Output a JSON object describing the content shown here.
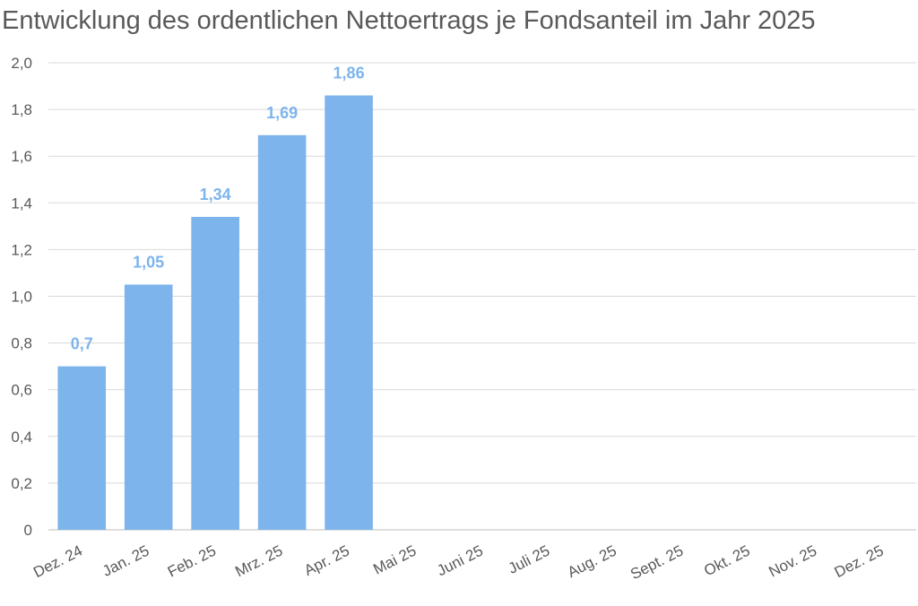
{
  "chart_data": {
    "type": "bar",
    "title": "Entwicklung des ordentlichen Nettoertrags je Fondsanteil im Jahr 2025",
    "xlabel": "",
    "ylabel": "",
    "categories": [
      "Dez. 24",
      "Jan. 25",
      "Feb. 25",
      "Mrz. 25",
      "Apr. 25",
      "Mai 25",
      "Juni 25",
      "Juli 25",
      "Aug. 25",
      "Sept. 25",
      "Okt. 25",
      "Nov. 25",
      "Dez. 25"
    ],
    "values": [
      0.7,
      1.05,
      1.34,
      1.69,
      1.86,
      null,
      null,
      null,
      null,
      null,
      null,
      null,
      null
    ],
    "data_labels": [
      "0,7",
      "1,05",
      "1,34",
      "1,69",
      "1,86",
      "",
      "",
      "",
      "",
      "",
      "",
      "",
      ""
    ],
    "ylim": [
      0,
      2.0
    ],
    "yticks": [
      "0",
      "0,2",
      "0,4",
      "0,6",
      "0,8",
      "1,0",
      "1,2",
      "1,4",
      "1,6",
      "1,8",
      "2,0"
    ],
    "ytick_values": [
      0,
      0.2,
      0.4,
      0.6,
      0.8,
      1.0,
      1.2,
      1.4,
      1.6,
      1.8,
      2.0
    ],
    "grid": true,
    "legend": "none",
    "colors": {
      "bar": "#7db4ec",
      "data_label": "#7db4ec",
      "text": "#595959",
      "grid": "#d9d9d9"
    }
  }
}
